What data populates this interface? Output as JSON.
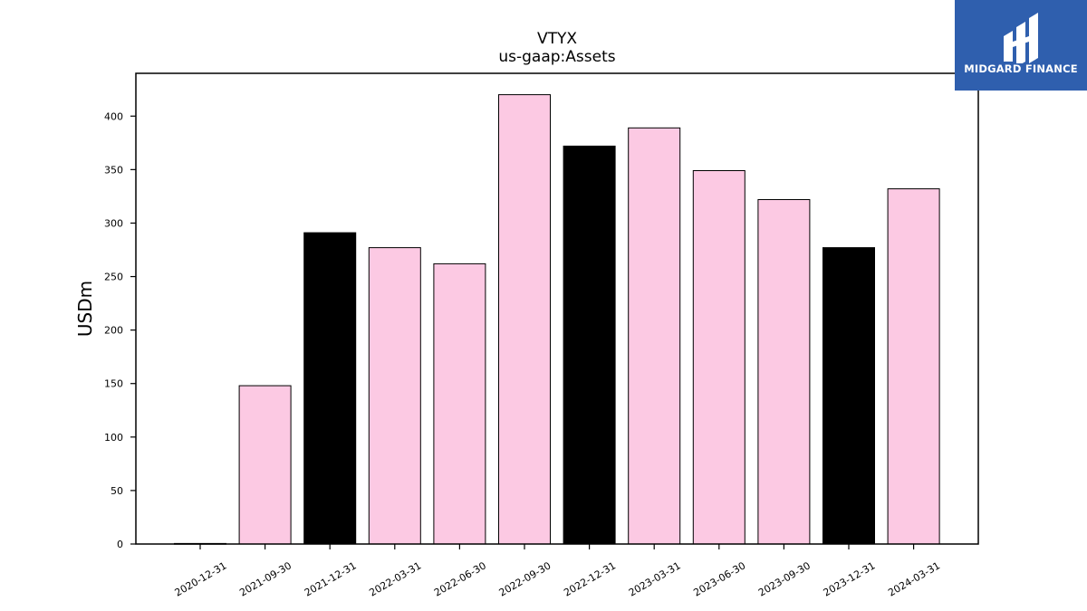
{
  "chart_data": {
    "type": "bar",
    "title": "VTYX",
    "subtitle": "us-gaap:Assets",
    "xlabel": "",
    "ylabel": "USDm",
    "categories": [
      "2020-12-31",
      "2021-09-30",
      "2021-12-31",
      "2022-03-31",
      "2022-06-30",
      "2022-09-30",
      "2022-12-31",
      "2023-03-31",
      "2023-06-30",
      "2023-09-30",
      "2023-12-31",
      "2024-03-31"
    ],
    "values": [
      0.5,
      148,
      291,
      277,
      262,
      420,
      372,
      389,
      349,
      322,
      277,
      332
    ],
    "bar_colors": [
      "#fcc9e3",
      "#fcc9e3",
      "#000000",
      "#fcc9e3",
      "#fcc9e3",
      "#fcc9e3",
      "#000000",
      "#fcc9e3",
      "#fcc9e3",
      "#fcc9e3",
      "#000000",
      "#fcc9e3"
    ],
    "yticks": [
      0,
      50,
      100,
      150,
      200,
      250,
      300,
      350,
      400
    ],
    "ylim": [
      0,
      440
    ],
    "grid": false,
    "legend": "none"
  },
  "logo": {
    "text": "MIDGARD FINANCE",
    "background": "#2f5fae",
    "icon": "midgard-logo-icon"
  }
}
